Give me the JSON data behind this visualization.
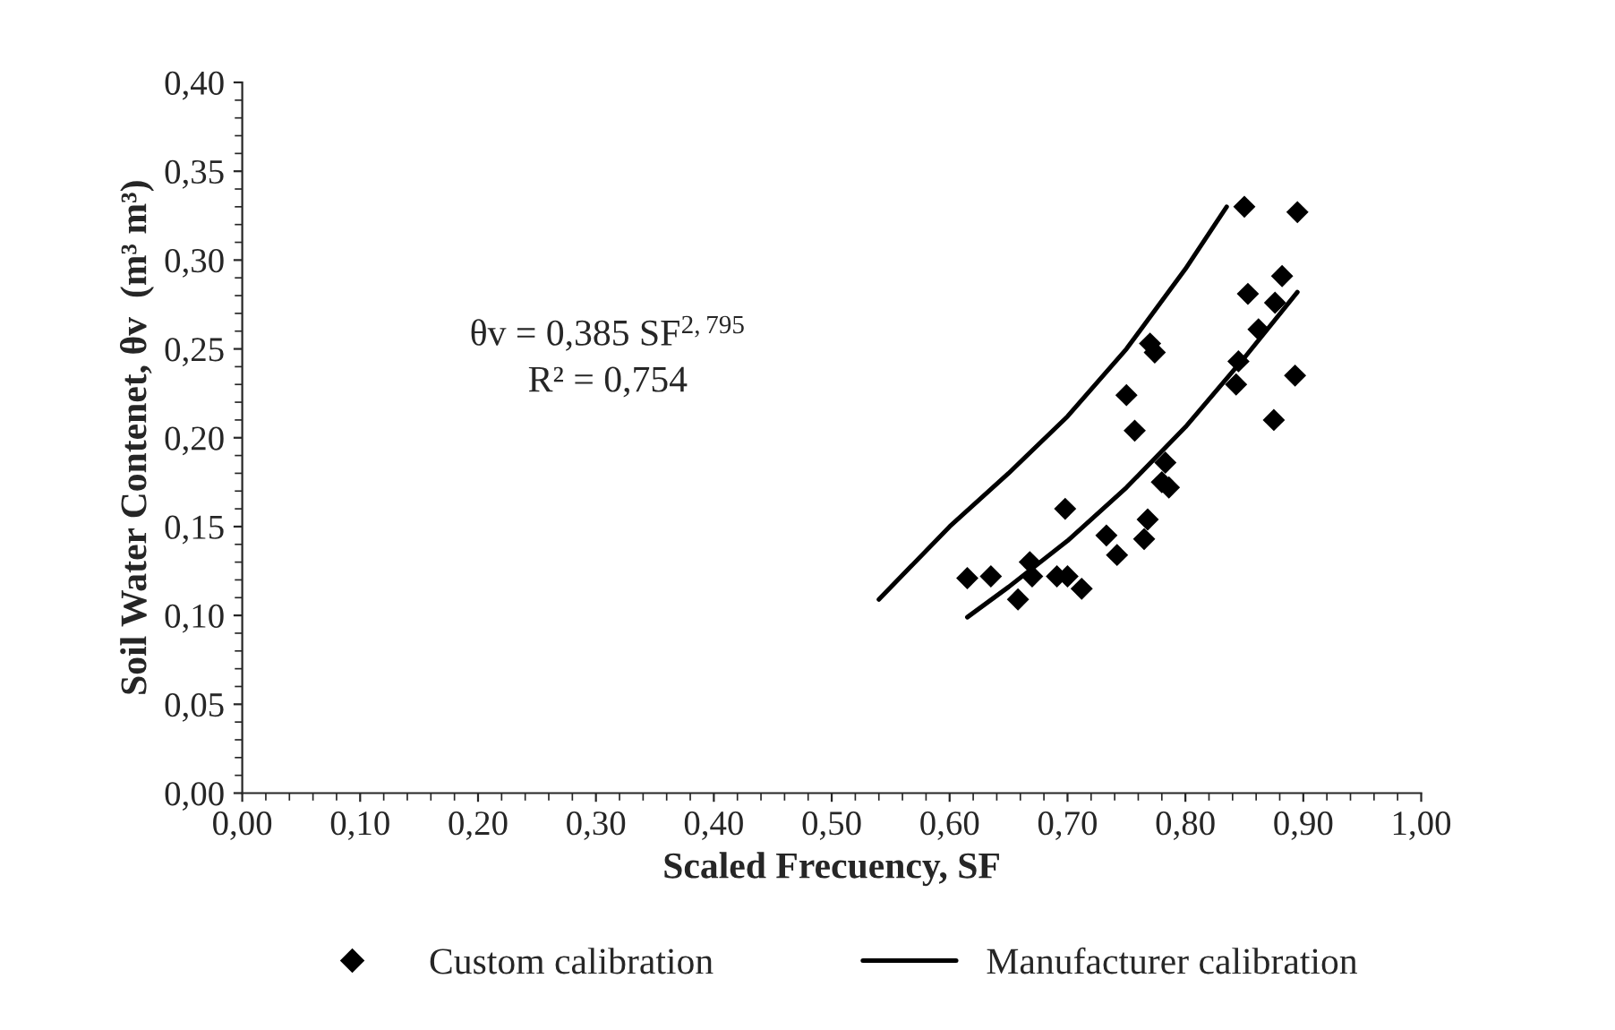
{
  "chart_data": {
    "type": "scatter",
    "xlabel": "Scaled Frecuency, SF",
    "ylabel": "Soil Water Contenet, θv  (m³ m³)",
    "annotations": [
      "θv = 0,385 SF$^{2,795}$",
      "R² = 0,754"
    ],
    "series": [
      {
        "name": "Custom calibration",
        "marker": "diamond",
        "color": "#000000",
        "x": [
          0.615,
          0.635,
          0.658,
          0.668,
          0.67,
          0.691,
          0.698,
          0.7,
          0.712,
          0.733,
          0.742,
          0.75,
          0.757,
          0.765,
          0.768,
          0.77,
          0.774,
          0.78,
          0.783,
          0.786,
          0.843,
          0.845,
          0.85,
          0.853,
          0.862,
          0.875,
          0.876,
          0.882,
          0.893,
          0.895
        ],
        "values": [
          0.121,
          0.122,
          0.109,
          0.13,
          0.122,
          0.122,
          0.16,
          0.122,
          0.115,
          0.145,
          0.134,
          0.224,
          0.204,
          0.143,
          0.154,
          0.253,
          0.248,
          0.175,
          0.186,
          0.172,
          0.23,
          0.243,
          0.33,
          0.281,
          0.261,
          0.21,
          0.276,
          0.291,
          0.235,
          0.327
        ]
      },
      {
        "name": "Manufacturer calibration",
        "type": "line",
        "marker": "none",
        "color": "#000000",
        "x": [
          0.54,
          0.6,
          0.65,
          0.7,
          0.75,
          0.8,
          0.835
        ],
        "values": [
          0.109,
          0.15,
          0.18,
          0.212,
          0.25,
          0.295,
          0.33
        ]
      },
      {
        "type": "line",
        "marker": "none",
        "color": "#000000",
        "x": [
          0.615,
          0.65,
          0.7,
          0.75,
          0.8,
          0.85,
          0.895
        ],
        "values": [
          0.099,
          0.116,
          0.142,
          0.172,
          0.206,
          0.245,
          0.282
        ]
      }
    ],
    "xlim": [
      0,
      1
    ],
    "ylim": [
      0,
      0.4
    ],
    "xticks": [
      {
        "value": 0,
        "label": "0,00"
      },
      {
        "value": 0.1,
        "label": "0,10"
      },
      {
        "value": 0.2,
        "label": "0,20"
      },
      {
        "value": 0.3,
        "label": "0,30"
      },
      {
        "value": 0.4,
        "label": "0,40"
      },
      {
        "value": 0.5,
        "label": "0,50"
      },
      {
        "value": 0.6,
        "label": "0,60"
      },
      {
        "value": 0.7,
        "label": "0,70"
      },
      {
        "value": 0.8,
        "label": "0,80"
      },
      {
        "value": 0.9,
        "label": "0,90"
      },
      {
        "value": 1,
        "label": "1,00"
      }
    ],
    "yticks": [
      {
        "value": 0,
        "label": "0,00"
      },
      {
        "value": 0.05,
        "label": "0,05"
      },
      {
        "value": 0.1,
        "label": "0,10"
      },
      {
        "value": 0.15,
        "label": "0,15"
      },
      {
        "value": 0.2,
        "label": "0,20"
      },
      {
        "value": 0.25,
        "label": "0,25"
      },
      {
        "value": 0.3,
        "label": "0,30"
      },
      {
        "value": 0.35,
        "label": "0,35"
      },
      {
        "value": 0.4,
        "label": "0,40"
      }
    ],
    "grid": false,
    "legend": "bottom"
  }
}
